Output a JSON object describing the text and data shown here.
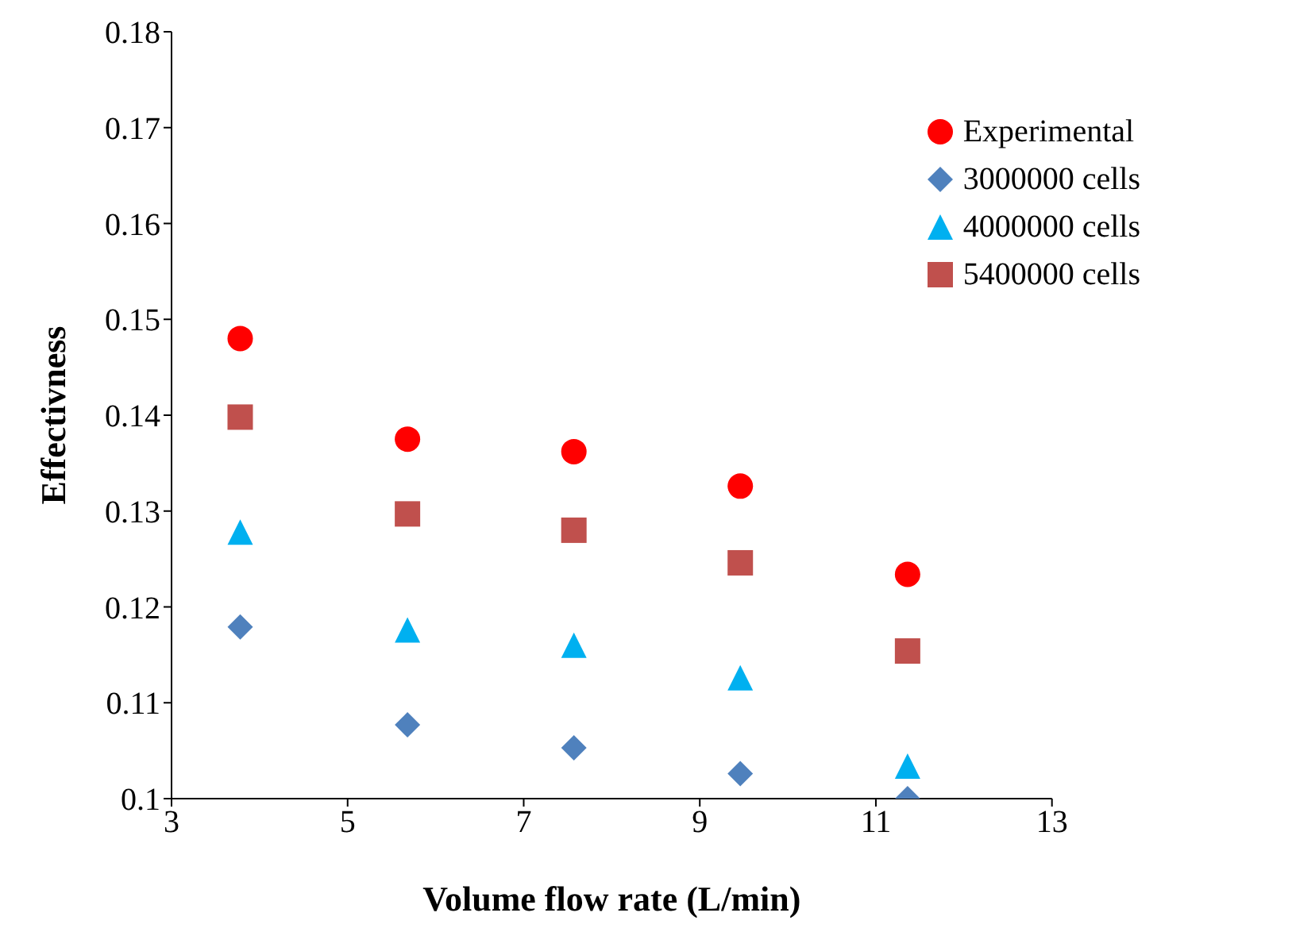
{
  "chart_data": {
    "type": "scatter",
    "xlabel": "Volume flow rate (L/min)",
    "ylabel": "Effectivness",
    "x": [
      3.78,
      5.68,
      7.57,
      9.46,
      11.36
    ],
    "series": [
      {
        "name": "Experimental",
        "color": "#ff0000",
        "marker": "circle",
        "values": [
          0.148,
          0.1375,
          0.1362,
          0.1326,
          0.1234
        ]
      },
      {
        "name": "3000000 cells",
        "color": "#4f81bd",
        "marker": "diamond",
        "values": [
          0.1179,
          0.1077,
          0.1053,
          0.1026,
          0.1
        ]
      },
      {
        "name": "4000000 cells",
        "color": "#00b0f0",
        "marker": "triangle",
        "values": [
          0.1278,
          0.1176,
          0.116,
          0.1126,
          0.1034
        ]
      },
      {
        "name": "5400000 cells",
        "color": "#c0504d",
        "marker": "square",
        "values": [
          0.1398,
          0.1297,
          0.128,
          0.1246,
          0.1154
        ]
      }
    ],
    "xlim": [
      3,
      13
    ],
    "xticks": [
      3,
      5,
      7,
      9,
      11,
      13
    ],
    "ylim": [
      0.1,
      0.18
    ],
    "yticks": [
      0.1,
      0.11,
      0.12,
      0.13,
      0.14,
      0.15,
      0.16,
      0.17,
      0.18
    ],
    "grid": false,
    "legend": "top right"
  }
}
